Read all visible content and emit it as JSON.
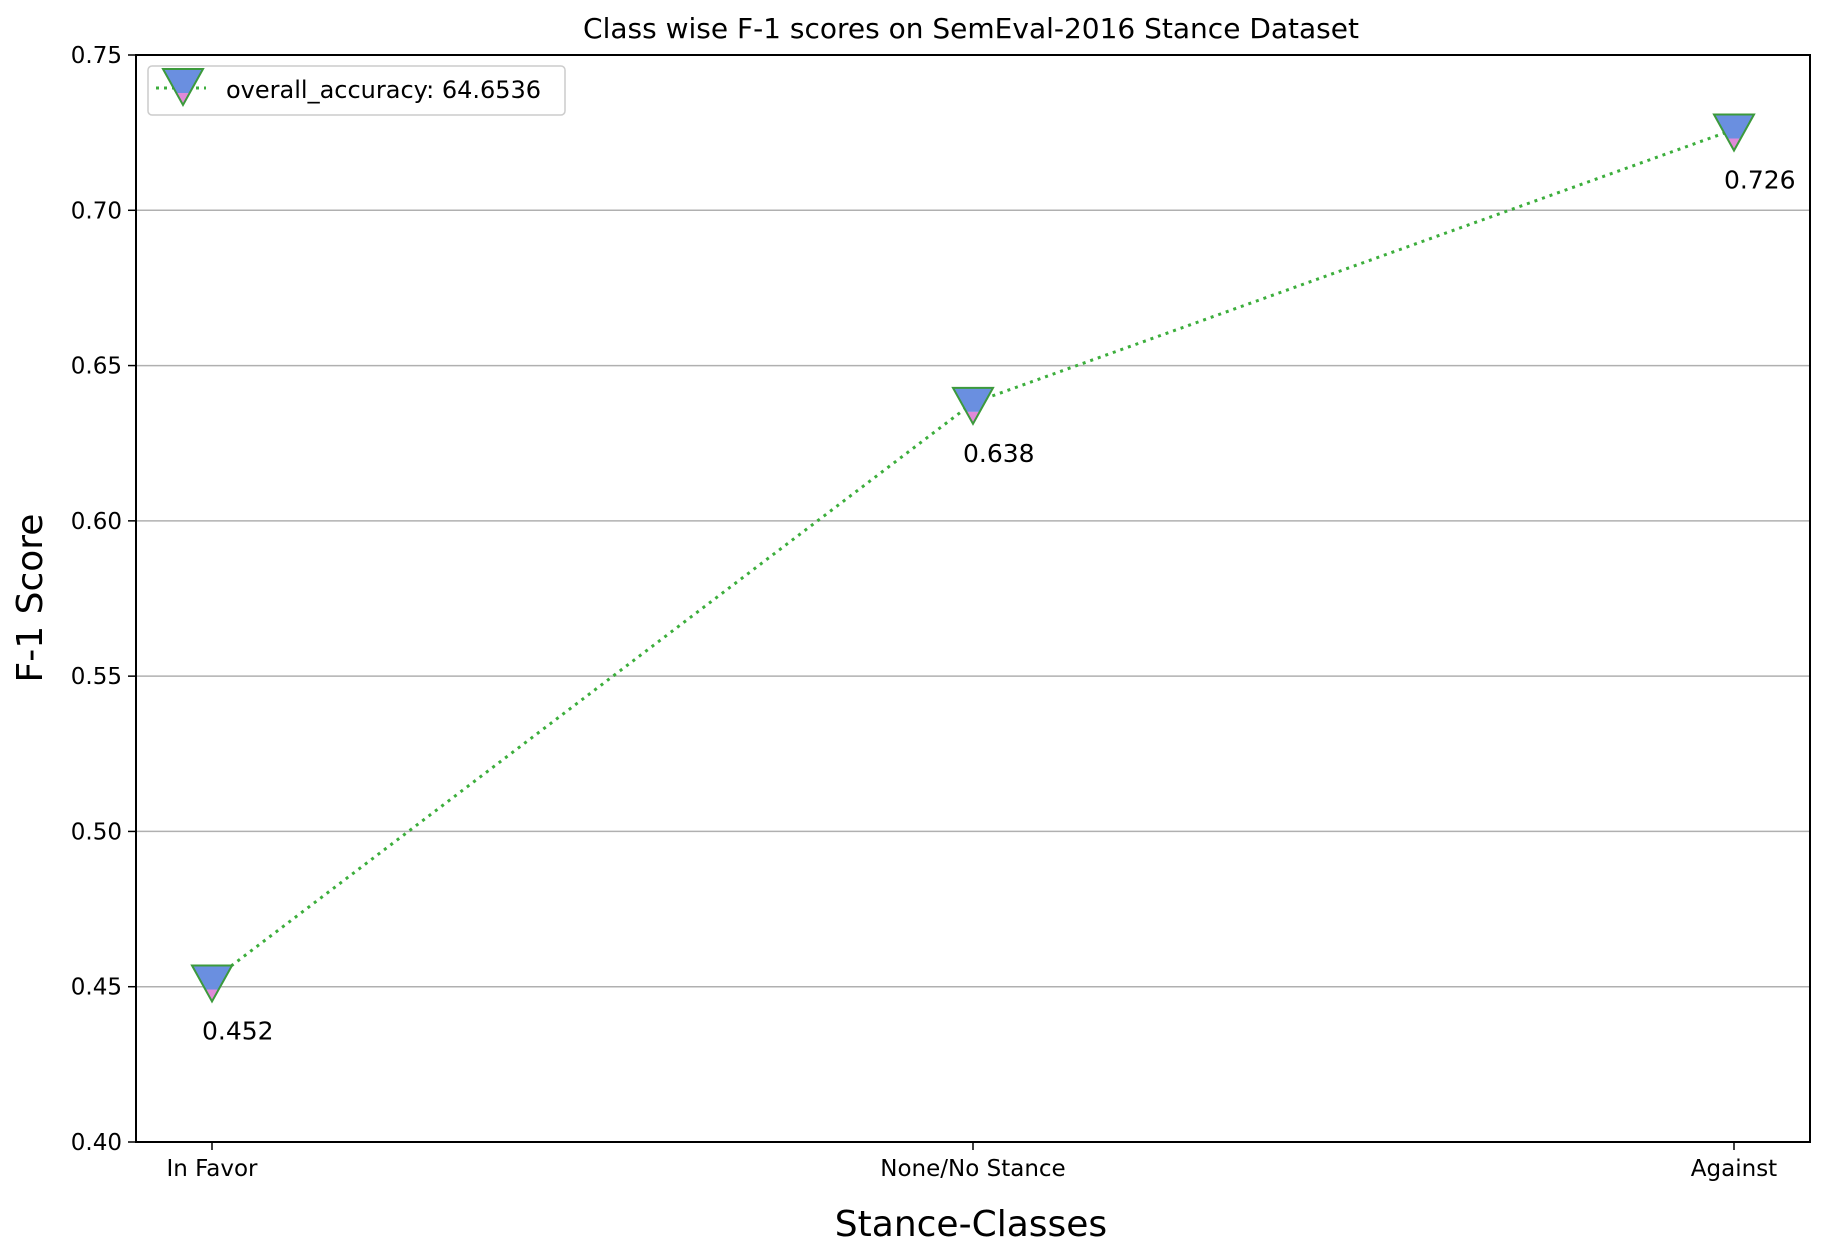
{
  "chart_data": {
    "type": "line",
    "title": "Class wise F-1 scores on SemEval-2016 Stance Dataset",
    "xlabel": "Stance-Classes",
    "ylabel": "F-1 Score",
    "categories": [
      "In Favor",
      "None/No Stance",
      "Against"
    ],
    "series": [
      {
        "name": "overall_accuracy: 64.6536",
        "values": [
          0.452,
          0.638,
          0.726
        ],
        "line_style": "dotted",
        "line_color": "#3cae3c",
        "marker": "triangle-down",
        "marker_fill_top": "#6a8fe0",
        "marker_fill_bottom": "#e08ad8",
        "marker_edge": "#3c9a3c"
      }
    ],
    "data_labels": [
      "0.452",
      "0.638",
      "0.726"
    ],
    "ylim": [
      0.4,
      0.75
    ],
    "yticks": [
      0.4,
      0.45,
      0.5,
      0.55,
      0.6,
      0.65,
      0.7,
      0.75
    ],
    "ytick_labels": [
      "0.40",
      "0.45",
      "0.50",
      "0.55",
      "0.60",
      "0.65",
      "0.70",
      "0.75"
    ],
    "grid": "horizontal",
    "grid_color": "#b0b0b0",
    "legend_position": "top-left"
  }
}
